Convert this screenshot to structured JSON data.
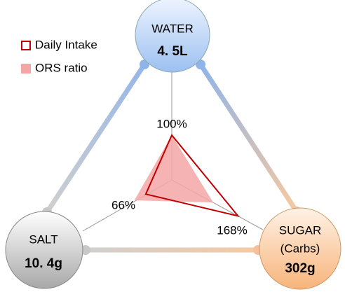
{
  "chart_data": {
    "type": "radar",
    "categories": [
      "WATER",
      "SUGAR",
      "SALT"
    ],
    "category_notes": [
      null,
      "(Carbs)",
      null
    ],
    "amounts": [
      "4. 5L",
      "302g",
      "10. 4g"
    ],
    "series": [
      {
        "name": "Daily Intake",
        "color": "#c00000",
        "values": [
          100,
          168,
          66
        ],
        "value_labels": [
          "100%",
          "168%",
          "66%"
        ]
      },
      {
        "name": "ORS ratio",
        "color": "#f4a6a6",
        "values": [
          100,
          105,
          95
        ]
      }
    ],
    "legend": "upper-left"
  }
}
